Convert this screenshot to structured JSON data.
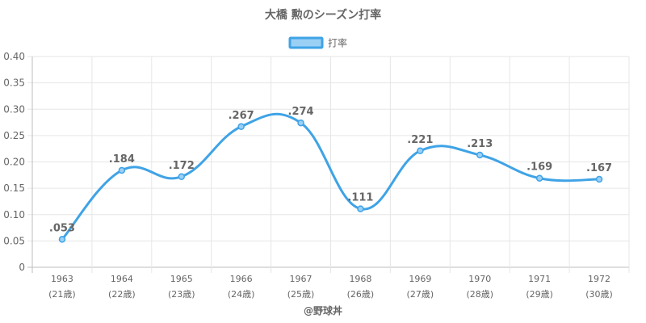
{
  "chart_data": {
    "type": "line",
    "title": "大橋 勲のシーズン打率",
    "legend": {
      "label": "打率",
      "position": "top"
    },
    "categories": [
      "1963",
      "1964",
      "1965",
      "1966",
      "1967",
      "1968",
      "1969",
      "1970",
      "1971",
      "1972"
    ],
    "sublabels": [
      "(21歳)",
      "(22歳)",
      "(23歳)",
      "(24歳)",
      "(25歳)",
      "(26歳)",
      "(27歳)",
      "(28歳)",
      "(29歳)",
      "(30歳)"
    ],
    "series": [
      {
        "name": "打率",
        "values": [
          0.053,
          0.184,
          0.172,
          0.267,
          0.274,
          0.111,
          0.221,
          0.213,
          0.169,
          0.167
        ],
        "labels": [
          ".053",
          ".184",
          ".172",
          ".267",
          ".274",
          ".111",
          ".221",
          ".213",
          ".169",
          ".167"
        ]
      }
    ],
    "yticks": [
      "0",
      "0.05",
      "0.10",
      "0.15",
      "0.20",
      "0.25",
      "0.30",
      "0.35",
      "0.40"
    ],
    "ylim": [
      0,
      0.4
    ],
    "grid": true,
    "colors": {
      "line": "#3fa3e6",
      "fill": "#9bd0f5",
      "grid": "#e6e6e6",
      "text": "#666666"
    },
    "footer": "@野球丼"
  }
}
